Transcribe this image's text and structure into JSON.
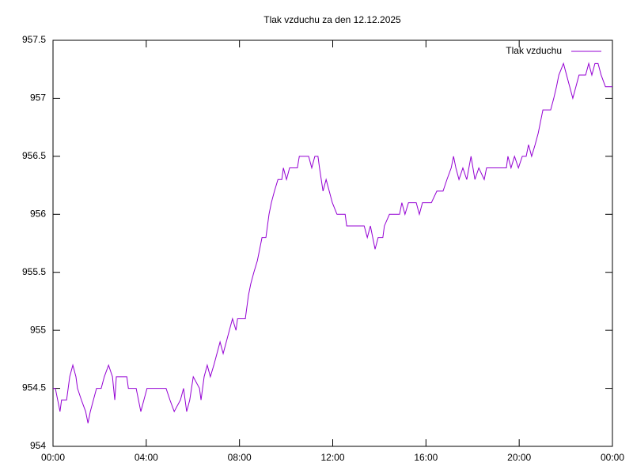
{
  "chart_data": {
    "type": "line",
    "title": "Tlak vzduchu za den 12.12.2025",
    "xlim": [
      0,
      1440
    ],
    "xticks": [
      {
        "value": 0,
        "label": "00:00"
      },
      {
        "value": 240,
        "label": "04:00"
      },
      {
        "value": 480,
        "label": "08:00"
      },
      {
        "value": 720,
        "label": "12:00"
      },
      {
        "value": 960,
        "label": "16:00"
      },
      {
        "value": 1200,
        "label": "20:00"
      },
      {
        "value": 1440,
        "label": "00:00"
      }
    ],
    "ylim": [
      954,
      957.5
    ],
    "yticks": [
      954,
      954.5,
      955,
      955.5,
      956,
      956.5,
      957,
      957.5
    ],
    "grid": false,
    "legend": "top-right",
    "x": [
      0,
      6,
      18,
      22,
      35,
      39,
      43,
      51,
      59,
      63,
      73,
      84,
      90,
      96,
      104,
      112,
      124,
      132,
      143,
      153,
      159,
      163,
      190,
      194,
      214,
      220,
      226,
      234,
      242,
      291,
      301,
      312,
      328,
      336,
      344,
      352,
      361,
      377,
      381,
      389,
      397,
      405,
      414,
      422,
      430,
      438,
      446,
      454,
      462,
      471,
      475,
      495,
      499,
      503,
      509,
      517,
      526,
      532,
      538,
      548,
      552,
      556,
      562,
      570,
      579,
      589,
      593,
      601,
      609,
      629,
      634,
      658,
      666,
      674,
      682,
      686,
      695,
      703,
      711,
      719,
      731,
      752,
      756,
      801,
      809,
      817,
      829,
      837,
      849,
      853,
      866,
      892,
      898,
      906,
      915,
      935,
      943,
      951,
      974,
      988,
      1004,
      1014,
      1025,
      1031,
      1037,
      1045,
      1055,
      1065,
      1076,
      1086,
      1096,
      1110,
      1116,
      1167,
      1171,
      1179,
      1188,
      1198,
      1208,
      1218,
      1224,
      1232,
      1241,
      1249,
      1255,
      1261,
      1281,
      1289,
      1296,
      1302,
      1314,
      1322,
      1330,
      1338,
      1346,
      1354,
      1371,
      1379,
      1387,
      1395,
      1403,
      1411,
      1422,
      1440
    ],
    "series": [
      {
        "name": "Tlak vzduchu",
        "color": "#9400d3",
        "values": [
          954.5,
          954.5,
          954.3,
          954.4,
          954.4,
          954.5,
          954.6,
          954.7,
          954.6,
          954.5,
          954.4,
          954.3,
          954.2,
          954.3,
          954.4,
          954.5,
          954.5,
          954.6,
          954.7,
          954.6,
          954.4,
          954.6,
          954.6,
          954.5,
          954.5,
          954.4,
          954.3,
          954.4,
          954.5,
          954.5,
          954.4,
          954.3,
          954.4,
          954.5,
          954.3,
          954.4,
          954.6,
          954.5,
          954.4,
          954.6,
          954.7,
          954.6,
          954.7,
          954.8,
          954.9,
          954.8,
          954.9,
          955.0,
          955.1,
          955.0,
          955.1,
          955.1,
          955.2,
          955.3,
          955.4,
          955.5,
          955.6,
          955.7,
          955.8,
          955.8,
          955.9,
          956.0,
          956.1,
          956.2,
          956.3,
          956.3,
          956.4,
          956.3,
          956.4,
          956.4,
          956.5,
          956.5,
          956.4,
          956.5,
          956.5,
          956.4,
          956.2,
          956.3,
          956.2,
          956.1,
          956.0,
          956.0,
          955.9,
          955.9,
          955.8,
          955.9,
          955.7,
          955.8,
          955.8,
          955.9,
          956.0,
          956.0,
          956.1,
          956.0,
          956.1,
          956.1,
          956.0,
          956.1,
          956.1,
          956.2,
          956.2,
          956.3,
          956.4,
          956.5,
          956.4,
          956.3,
          956.4,
          956.3,
          956.5,
          956.3,
          956.4,
          956.3,
          956.4,
          956.4,
          956.5,
          956.4,
          956.5,
          956.4,
          956.5,
          956.5,
          956.6,
          956.5,
          956.6,
          956.7,
          956.8,
          956.9,
          956.9,
          957.0,
          957.1,
          957.2,
          957.3,
          957.2,
          957.1,
          957.0,
          957.1,
          957.2,
          957.2,
          957.3,
          957.2,
          957.3,
          957.3,
          957.2,
          957.1,
          957.1
        ]
      }
    ]
  }
}
